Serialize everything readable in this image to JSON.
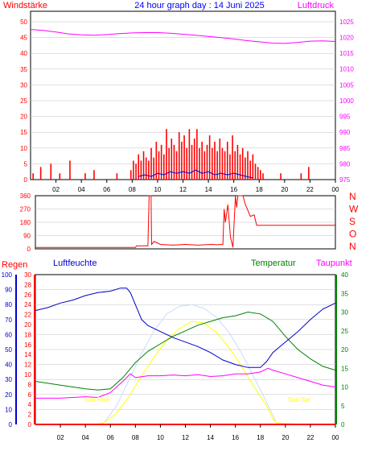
{
  "header": {
    "left_label": "Windstärke",
    "title": "24 hour graph day : 14 Juni 2025",
    "right_label": "Luftdruck"
  },
  "colors": {
    "wind": "#ff0000",
    "gust_avg": "#0000cc",
    "pressure": "#ff00ff",
    "direction": "#ff0000",
    "rain": "#ff0000",
    "humidity": "#0000cc",
    "temperature": "#008000",
    "dewpoint": "#ff00ff",
    "solar": "#ffff00",
    "uv": "#c8dcff",
    "grid": "#c0c0c0",
    "title": "#0000ff"
  },
  "time_ticks": [
    "02",
    "04",
    "06",
    "08",
    "10",
    "12",
    "14",
    "16",
    "18",
    "20",
    "22",
    "00"
  ],
  "chart_data": [
    {
      "type": "bar",
      "name": "wind_pressure",
      "left_axis": {
        "label": "Windstärke",
        "ticks": [
          0,
          5,
          10,
          15,
          20,
          25,
          30,
          35,
          40,
          45,
          50
        ],
        "ylim": [
          0,
          50
        ]
      },
      "right_axis": {
        "label": "Luftdruck",
        "ticks": [
          975,
          980,
          985,
          990,
          995,
          1000,
          1005,
          1010,
          1015,
          1020,
          1025
        ],
        "ylim": [
          975,
          1027.5
        ]
      },
      "x_hours": [
        0,
        24
      ],
      "wind_gusts": [
        [
          0.2,
          2
        ],
        [
          0.8,
          4
        ],
        [
          1.6,
          5
        ],
        [
          2.3,
          2
        ],
        [
          3.1,
          6
        ],
        [
          4.3,
          2
        ],
        [
          5.0,
          3
        ],
        [
          6.8,
          2
        ],
        [
          7.9,
          3
        ],
        [
          8.1,
          6
        ],
        [
          8.3,
          5
        ],
        [
          8.5,
          8
        ],
        [
          8.7,
          6
        ],
        [
          8.9,
          9
        ],
        [
          9.1,
          7
        ],
        [
          9.3,
          6
        ],
        [
          9.5,
          10
        ],
        [
          9.7,
          7
        ],
        [
          9.9,
          12
        ],
        [
          10.1,
          9
        ],
        [
          10.3,
          11
        ],
        [
          10.5,
          8
        ],
        [
          10.7,
          16
        ],
        [
          10.9,
          10
        ],
        [
          11.1,
          13
        ],
        [
          11.3,
          11
        ],
        [
          11.5,
          9
        ],
        [
          11.7,
          15
        ],
        [
          11.9,
          12
        ],
        [
          12.1,
          14
        ],
        [
          12.3,
          10
        ],
        [
          12.5,
          16
        ],
        [
          12.7,
          11
        ],
        [
          12.9,
          13
        ],
        [
          13.1,
          16
        ],
        [
          13.3,
          10
        ],
        [
          13.5,
          12
        ],
        [
          13.7,
          9
        ],
        [
          13.9,
          11
        ],
        [
          14.1,
          14
        ],
        [
          14.3,
          10
        ],
        [
          14.5,
          12
        ],
        [
          14.7,
          9
        ],
        [
          14.9,
          13
        ],
        [
          15.1,
          10
        ],
        [
          15.3,
          9
        ],
        [
          15.5,
          12
        ],
        [
          15.7,
          8
        ],
        [
          15.9,
          14
        ],
        [
          16.1,
          9
        ],
        [
          16.3,
          11
        ],
        [
          16.5,
          8
        ],
        [
          16.7,
          10
        ],
        [
          16.9,
          7
        ],
        [
          17.1,
          9
        ],
        [
          17.3,
          6
        ],
        [
          17.5,
          8
        ],
        [
          17.7,
          5
        ],
        [
          17.9,
          4
        ],
        [
          18.1,
          3
        ],
        [
          18.3,
          2
        ],
        [
          19.7,
          2
        ],
        [
          21.3,
          2
        ],
        [
          21.9,
          4
        ]
      ],
      "wind_average": [
        [
          8.5,
          1
        ],
        [
          9.0,
          1.5
        ],
        [
          9.5,
          1
        ],
        [
          10.0,
          2
        ],
        [
          10.5,
          1.5
        ],
        [
          11.0,
          2.5
        ],
        [
          11.5,
          2
        ],
        [
          12.0,
          2.5
        ],
        [
          12.5,
          2
        ],
        [
          13.0,
          3
        ],
        [
          13.5,
          2
        ],
        [
          14.0,
          2.5
        ],
        [
          14.5,
          1.5
        ],
        [
          15.0,
          2
        ],
        [
          15.5,
          1.5
        ],
        [
          16.0,
          2
        ],
        [
          16.5,
          1.5
        ],
        [
          17.0,
          1
        ],
        [
          17.5,
          0.5
        ]
      ],
      "pressure": [
        [
          0,
          1022.5
        ],
        [
          1,
          1022.2
        ],
        [
          2,
          1021.7
        ],
        [
          3,
          1021.1
        ],
        [
          4,
          1020.8
        ],
        [
          5,
          1020.7
        ],
        [
          6,
          1020.9
        ],
        [
          7,
          1021.2
        ],
        [
          8,
          1021.4
        ],
        [
          9,
          1021.5
        ],
        [
          10,
          1021.5
        ],
        [
          11,
          1021.3
        ],
        [
          12,
          1021.0
        ],
        [
          13,
          1020.7
        ],
        [
          14,
          1020.3
        ],
        [
          15,
          1019.9
        ],
        [
          16,
          1019.5
        ],
        [
          17,
          1019.0
        ],
        [
          18,
          1018.6
        ],
        [
          19,
          1018.2
        ],
        [
          20,
          1018.1
        ],
        [
          21,
          1018.4
        ],
        [
          22,
          1018.8
        ],
        [
          23,
          1018.9
        ],
        [
          24,
          1018.7
        ]
      ]
    },
    {
      "type": "line",
      "name": "wind_direction",
      "left_axis": {
        "ticks": [
          0,
          90,
          180,
          270,
          360
        ],
        "ylim": [
          0,
          360
        ]
      },
      "compass_labels": [
        "N",
        "W",
        "S",
        "O",
        "N"
      ],
      "direction": [
        [
          0,
          10
        ],
        [
          8.0,
          10
        ],
        [
          8.1,
          20
        ],
        [
          9.0,
          20
        ],
        [
          9.1,
          360
        ],
        [
          9.25,
          360
        ],
        [
          9.3,
          30
        ],
        [
          9.5,
          50
        ],
        [
          10.0,
          30
        ],
        [
          11.0,
          25
        ],
        [
          12.0,
          30
        ],
        [
          13.0,
          25
        ],
        [
          14.0,
          30
        ],
        [
          14.5,
          28
        ],
        [
          15.0,
          30
        ],
        [
          15.1,
          270
        ],
        [
          15.2,
          180
        ],
        [
          15.4,
          300
        ],
        [
          15.6,
          80
        ],
        [
          15.8,
          10
        ],
        [
          16.0,
          360
        ],
        [
          16.1,
          280
        ],
        [
          16.2,
          360
        ],
        [
          16.6,
          360
        ],
        [
          16.8,
          300
        ],
        [
          17.2,
          220
        ],
        [
          17.5,
          230
        ],
        [
          17.7,
          160
        ],
        [
          24,
          160
        ]
      ]
    },
    {
      "type": "line",
      "name": "rain_humidity_temperature",
      "labels": {
        "rain": "Regen",
        "humidity": "Luftfeuchte",
        "temperature": "Temperatur",
        "dewpoint": "Taupunkt"
      },
      "axes": {
        "humidity": {
          "ticks": [
            0,
            10,
            20,
            30,
            40,
            50,
            60,
            70,
            80,
            90,
            100
          ],
          "ylim": [
            0,
            100
          ]
        },
        "rain": {
          "ticks": [
            0,
            2,
            4,
            6,
            8,
            10,
            12,
            14,
            16,
            18,
            20,
            22,
            24,
            26,
            28,
            30
          ],
          "ylim": [
            0,
            30
          ]
        },
        "temperature": {
          "ticks": [
            0,
            5,
            10,
            15,
            20,
            25,
            30,
            35,
            40
          ],
          "ylim": [
            0,
            40
          ]
        }
      },
      "annotations": [
        {
          "text": "Sun Rise",
          "hour": 4.9
        },
        {
          "text": "Sun Set",
          "hour": 21.1
        }
      ],
      "humidity": [
        [
          0,
          76
        ],
        [
          1,
          78
        ],
        [
          2,
          81
        ],
        [
          3,
          83
        ],
        [
          4,
          86
        ],
        [
          5,
          88
        ],
        [
          6,
          89
        ],
        [
          6.8,
          91
        ],
        [
          7.3,
          91
        ],
        [
          7.6,
          88
        ],
        [
          8.0,
          80
        ],
        [
          8.5,
          70
        ],
        [
          9.0,
          66
        ],
        [
          10.0,
          62
        ],
        [
          11.0,
          58
        ],
        [
          12.0,
          55
        ],
        [
          13.0,
          52
        ],
        [
          14.0,
          48
        ],
        [
          15.0,
          43
        ],
        [
          16.0,
          40
        ],
        [
          17.0,
          38
        ],
        [
          18.0,
          38
        ],
        [
          18.5,
          42
        ],
        [
          19.0,
          48
        ],
        [
          20.0,
          55
        ],
        [
          21.0,
          62
        ],
        [
          22.0,
          70
        ],
        [
          23.0,
          77
        ],
        [
          24.0,
          81
        ]
      ],
      "temperature": [
        [
          0,
          11.5
        ],
        [
          1,
          11.0
        ],
        [
          2,
          10.5
        ],
        [
          3,
          10.0
        ],
        [
          4,
          9.5
        ],
        [
          5,
          9.2
        ],
        [
          6,
          9.5
        ],
        [
          7,
          12.5
        ],
        [
          8,
          16.5
        ],
        [
          9,
          19.5
        ],
        [
          10,
          21.5
        ],
        [
          11,
          23.5
        ],
        [
          12,
          25.0
        ],
        [
          13,
          26.5
        ],
        [
          14,
          27.5
        ],
        [
          15,
          28.5
        ],
        [
          16,
          29.0
        ],
        [
          17,
          30.0
        ],
        [
          18,
          29.5
        ],
        [
          19,
          27.5
        ],
        [
          20,
          23.5
        ],
        [
          21,
          20.0
        ],
        [
          22,
          17.5
        ],
        [
          23,
          15.5
        ],
        [
          24,
          14.5
        ]
      ],
      "dewpoint": [
        [
          0,
          7.0
        ],
        [
          1,
          7.0
        ],
        [
          2,
          7.0
        ],
        [
          3,
          7.2
        ],
        [
          4,
          7.4
        ],
        [
          5,
          7.2
        ],
        [
          6,
          8.5
        ],
        [
          7,
          11.5
        ],
        [
          7.6,
          13.5
        ],
        [
          8,
          12.5
        ],
        [
          9,
          13.0
        ],
        [
          10,
          13.0
        ],
        [
          11,
          13.2
        ],
        [
          12,
          13.0
        ],
        [
          13,
          13.3
        ],
        [
          14,
          12.8
        ],
        [
          15,
          13.0
        ],
        [
          16,
          13.5
        ],
        [
          17,
          13.5
        ],
        [
          18,
          14.0
        ],
        [
          18.6,
          15.0
        ],
        [
          19,
          14.5
        ],
        [
          20,
          13.5
        ],
        [
          21,
          12.5
        ],
        [
          22,
          11.5
        ],
        [
          23,
          10.5
        ],
        [
          24,
          10.0
        ]
      ],
      "solar": [
        [
          4.9,
          0
        ],
        [
          5.5,
          0.5
        ],
        [
          6.5,
          3
        ],
        [
          7.5,
          7.5
        ],
        [
          8.5,
          13
        ],
        [
          9.5,
          18
        ],
        [
          10.5,
          22.5
        ],
        [
          11.5,
          25.5
        ],
        [
          12.5,
          27.5
        ],
        [
          13.5,
          27.0
        ],
        [
          14.5,
          24.5
        ],
        [
          15.5,
          20.5
        ],
        [
          16.5,
          15.5
        ],
        [
          17.5,
          10.0
        ],
        [
          18.5,
          5.0
        ],
        [
          19.0,
          1.5
        ],
        [
          19.3,
          0.4
        ],
        [
          21.1,
          0
        ]
      ],
      "uv": [
        [
          5.5,
          0.5
        ],
        [
          6.5,
          5
        ],
        [
          7.5,
          12
        ],
        [
          8.5,
          19
        ],
        [
          9.5,
          25
        ],
        [
          10.5,
          29.5
        ],
        [
          11.5,
          31.5
        ],
        [
          12.5,
          32
        ],
        [
          13.5,
          31
        ],
        [
          14.5,
          28.5
        ],
        [
          15.5,
          24.5
        ],
        [
          16.5,
          19
        ],
        [
          17.5,
          12.5
        ],
        [
          18.5,
          6
        ],
        [
          19.2,
          1
        ]
      ],
      "rain": [
        [
          0,
          0
        ],
        [
          24,
          0
        ]
      ]
    }
  ]
}
